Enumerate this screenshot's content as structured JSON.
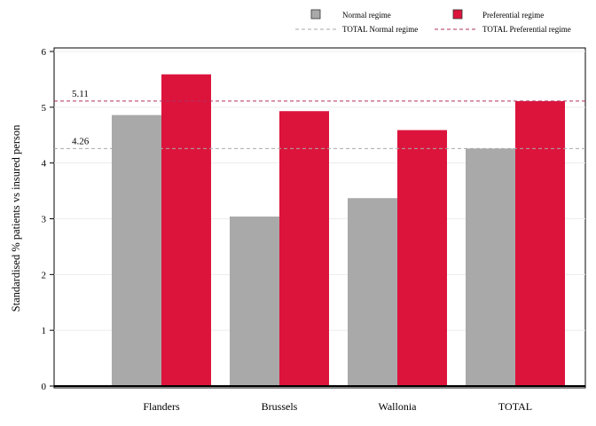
{
  "chart_data": {
    "type": "bar",
    "categories": [
      "Flanders",
      "Brussels",
      "Wallonia",
      "TOTAL"
    ],
    "series": [
      {
        "name": "Normal regime",
        "values": [
          4.86,
          3.04,
          3.37,
          4.26
        ],
        "color": "#a9a9a9"
      },
      {
        "name": "Preferential regime",
        "values": [
          5.59,
          4.93,
          4.59,
          5.11
        ],
        "color": "#dc143c"
      }
    ],
    "reference_lines": [
      {
        "name": "TOTAL Normal regime",
        "value": 4.26,
        "label": "4.26",
        "color": "#a9a9a9",
        "style": "dashed"
      },
      {
        "name": "TOTAL Preferential regime",
        "value": 5.11,
        "label": "5.11",
        "color": "#b03060",
        "style": "dashed"
      }
    ],
    "title": "",
    "xlabel": "",
    "ylabel": "Standardised % patients vs insured person",
    "ylim": [
      0,
      6
    ],
    "yticks": [
      0,
      1,
      2,
      3,
      4,
      5,
      6
    ],
    "grid": true,
    "legend_position": "top"
  }
}
